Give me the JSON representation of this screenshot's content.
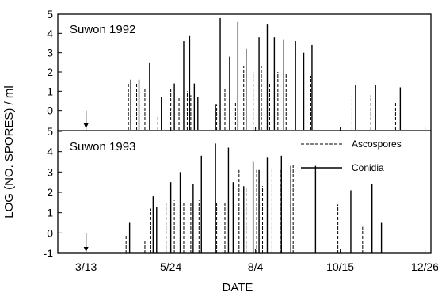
{
  "chart_data": [
    {
      "type": "bar",
      "title": "Suwon 1992",
      "xlabel": "",
      "ylabel": "",
      "xlim": [
        "2/17",
        "12/31"
      ],
      "ylim": [
        -1,
        5
      ],
      "yticks": [
        0,
        1,
        2,
        3,
        4,
        5
      ],
      "series": [
        {
          "name": "Ascospores",
          "x": [
            "4/18",
            "4/25",
            "5/2",
            "5/13",
            "5/24",
            "5/31",
            "6/7",
            "6/10",
            "7/2",
            "7/9",
            "7/18",
            "7/25",
            "8/2",
            "8/9",
            "8/16",
            "8/23",
            "8/30",
            "9/20",
            "10/25",
            "11/10",
            "12/1"
          ],
          "values": [
            1.5,
            1.5,
            1.2,
            -0.3,
            1.2,
            0.7,
            1.0,
            0.8,
            0.3,
            1.2,
            0.5,
            2.3,
            2.0,
            2.3,
            1.5,
            2.0,
            1.9,
            1.8,
            0.8,
            0.8,
            0.5
          ]
        },
        {
          "name": "Conidia",
          "x": [
            "4/20",
            "4/27",
            "5/6",
            "5/16",
            "5/27",
            "6/4",
            "6/9",
            "6/13",
            "6/16",
            "7/1",
            "7/5",
            "7/13",
            "7/20",
            "7/27",
            "8/7",
            "8/14",
            "8/20",
            "8/28",
            "9/7",
            "9/14",
            "9/21",
            "10/28",
            "11/14",
            "12/5"
          ],
          "values": [
            1.6,
            1.6,
            2.5,
            0.7,
            1.4,
            3.6,
            3.9,
            1.4,
            0.7,
            0.3,
            4.8,
            2.8,
            4.6,
            3.2,
            3.8,
            4.5,
            3.8,
            3.7,
            3.6,
            3.0,
            3.4,
            1.3,
            1.3,
            1.2
          ]
        }
      ],
      "annotations": [
        {
          "type": "arrow",
          "x": "3/13",
          "y": 0
        }
      ]
    },
    {
      "type": "bar",
      "title": "Suwon 1993",
      "xlabel": "DATE",
      "ylabel": "LOG (NO. SPORES) / ml",
      "xlim": [
        "2/17",
        "12/31"
      ],
      "ylim": [
        -1,
        5
      ],
      "yticks": [
        -1,
        0,
        1,
        2,
        3,
        4,
        5
      ],
      "xticks": [
        "3/13",
        "5/24",
        "8/4",
        "10/15",
        "12/26"
      ],
      "legend": "top-right",
      "series": [
        {
          "name": "Ascospores",
          "x": [
            "4/16",
            "5/2",
            "5/7",
            "5/20",
            "5/27",
            "6/4",
            "6/10",
            "6/17",
            "7/2",
            "7/9",
            "7/21",
            "7/27",
            "8/5",
            "8/10",
            "8/18",
            "8/25",
            "9/5",
            "10/13",
            "11/3"
          ],
          "values": [
            -0.1,
            -0.3,
            1.2,
            1.5,
            1.6,
            1.5,
            1.5,
            1.6,
            1.5,
            1.5,
            3.1,
            2.2,
            3.1,
            2.3,
            3.2,
            3.1,
            3.4,
            1.4,
            0.3
          ]
        },
        {
          "name": "Conidia",
          "x": [
            "4/19",
            "5/9",
            "5/12",
            "5/24",
            "6/1",
            "6/12",
            "6/19",
            "7/1",
            "7/12",
            "7/16",
            "7/25",
            "8/2",
            "8/7",
            "8/14",
            "8/26",
            "9/3",
            "9/24",
            "10/24",
            "11/11",
            "11/19"
          ],
          "values": [
            0.5,
            1.8,
            1.3,
            2.5,
            3.0,
            2.4,
            3.8,
            4.4,
            4.2,
            2.5,
            2.3,
            3.5,
            3.1,
            3.7,
            3.8,
            3.3,
            3.3,
            2.1,
            2.4,
            0.5
          ]
        }
      ],
      "annotations": [
        {
          "type": "arrow",
          "x": "3/13",
          "y": 0
        }
      ]
    }
  ]
}
